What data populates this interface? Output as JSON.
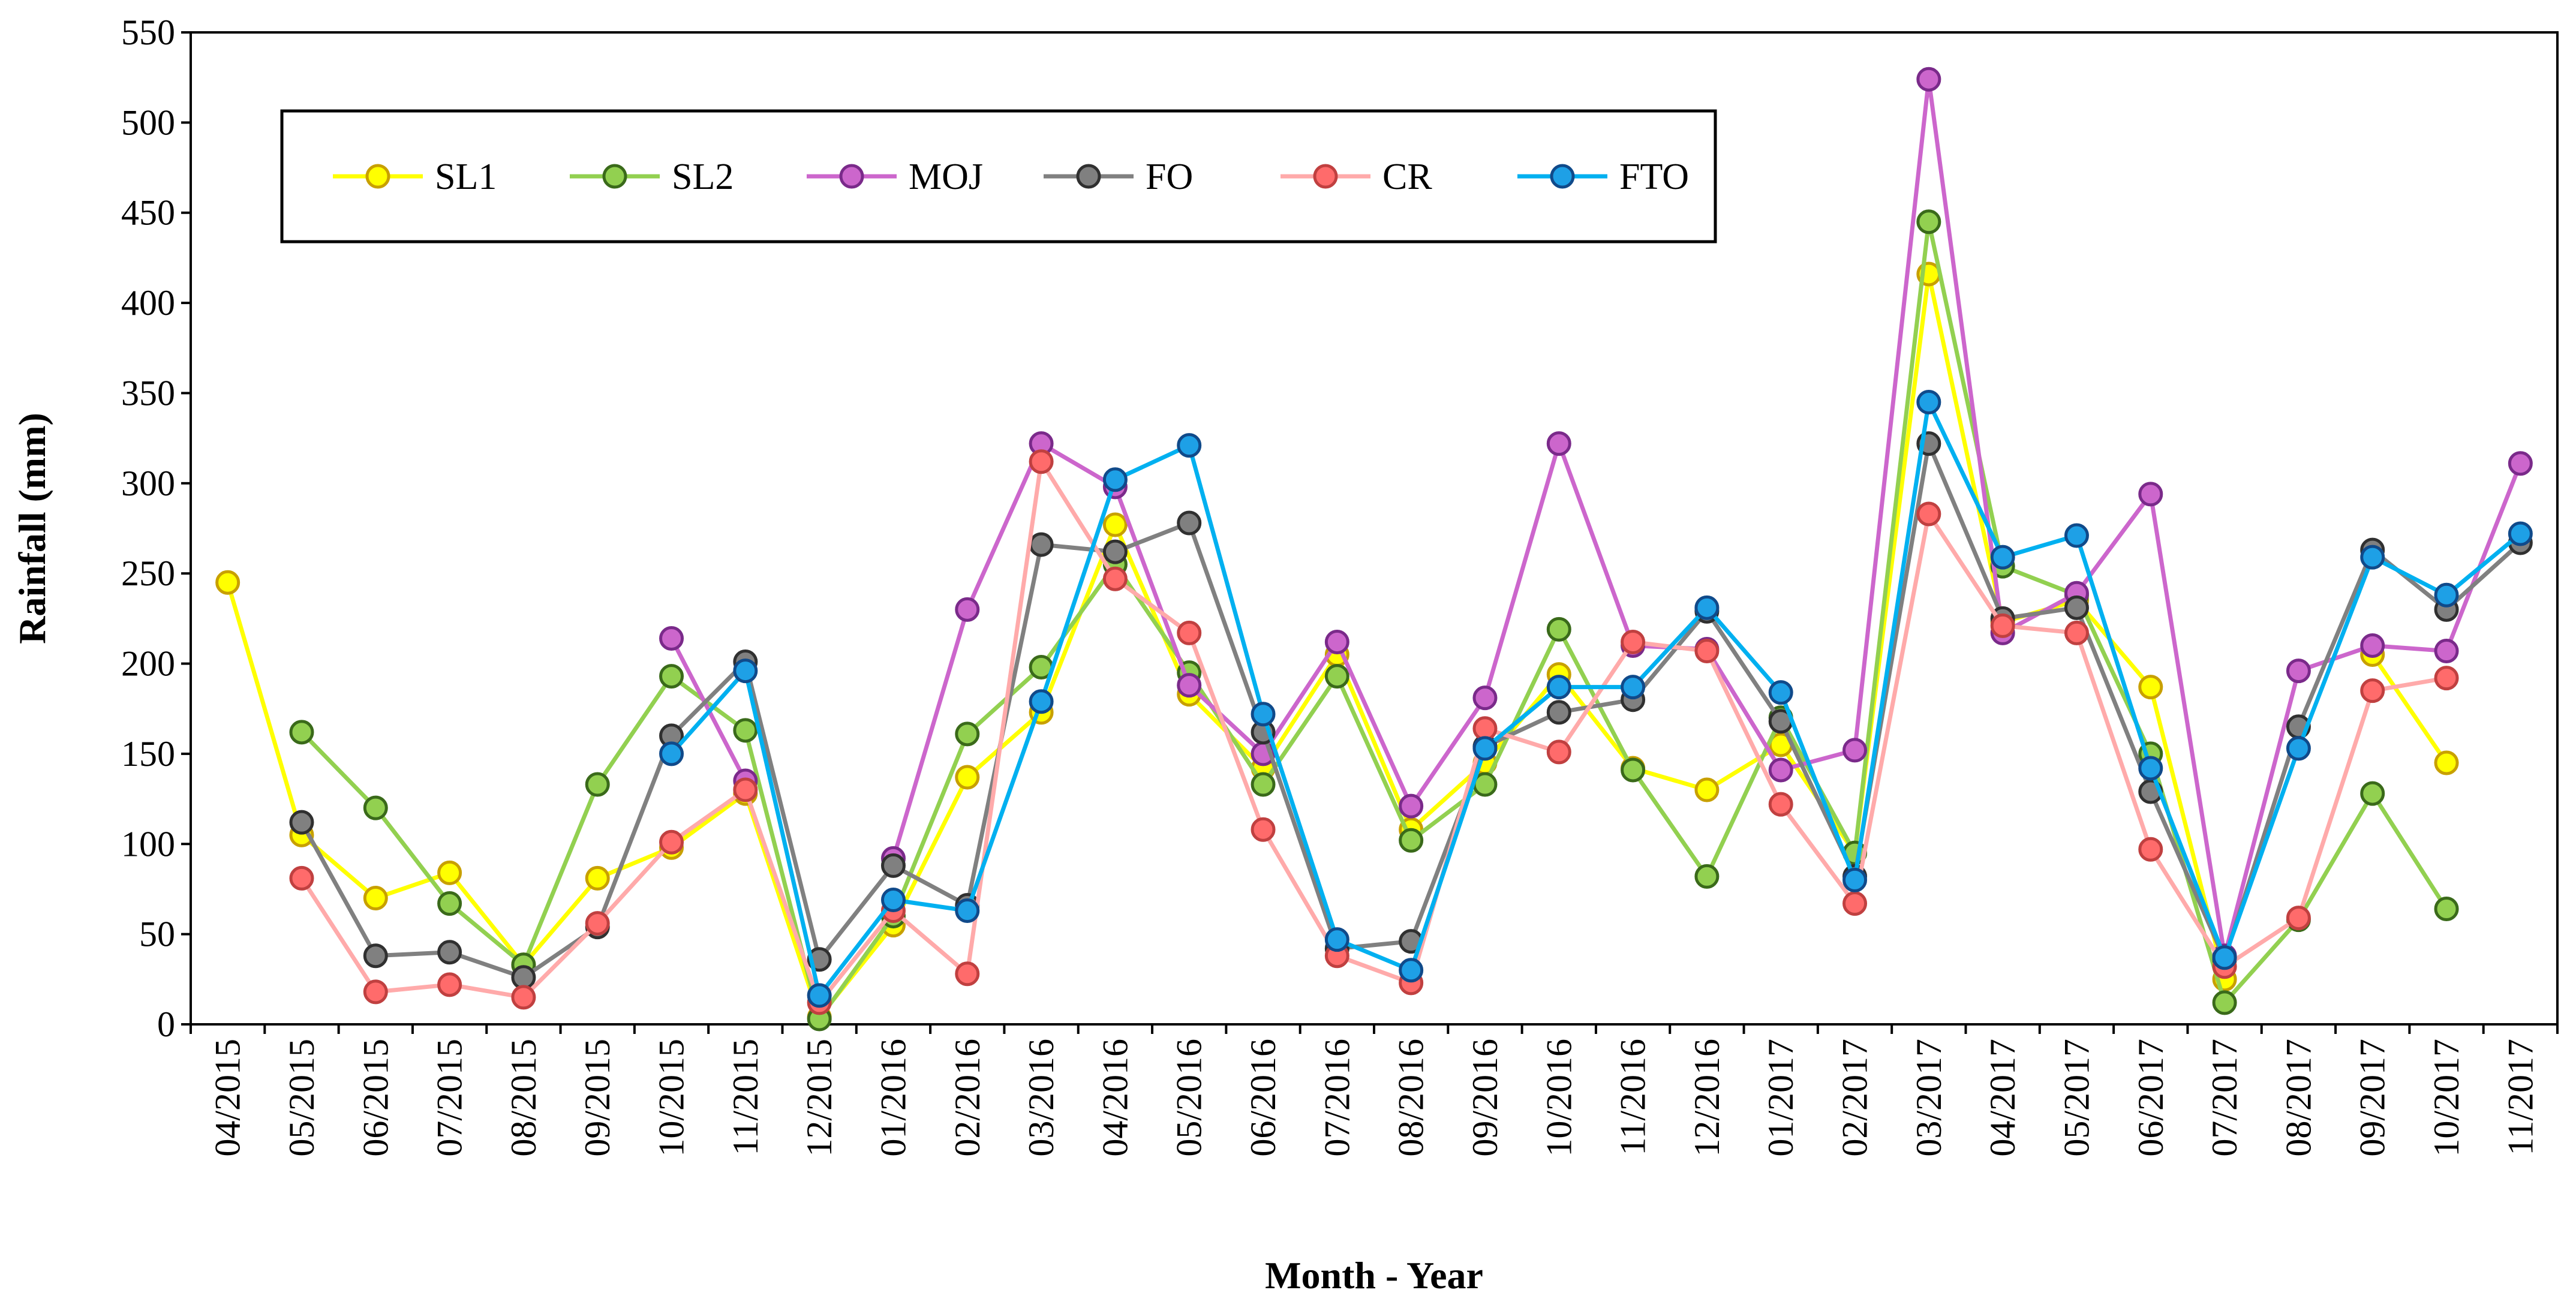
{
  "chart_data": {
    "type": "line",
    "title": "",
    "xlabel": "Month  - Year",
    "ylabel": "Rainfall (mm)",
    "ylim": [
      0,
      550
    ],
    "yticks": [
      0,
      50,
      100,
      150,
      200,
      250,
      300,
      350,
      400,
      450,
      500,
      550
    ],
    "grid": false,
    "legend_position": "top-left",
    "categories": [
      "04/2015",
      "05/2015",
      "06/2015",
      "07/2015",
      "08/2015",
      "09/2015",
      "10/2015",
      "11/2015",
      "12/2015",
      "01/2016",
      "02/2016",
      "03/2016",
      "04/2016",
      "05/2016",
      "06/2016",
      "07/2016",
      "08/2016",
      "09/2016",
      "10/2016",
      "11/2016",
      "12/2016",
      "01/2017",
      "02/2017",
      "03/2017",
      "04/2017",
      "05/2017",
      "06/2017",
      "07/2017",
      "08/2017",
      "09/2017",
      "10/2017",
      "11/2017"
    ],
    "series": [
      {
        "name": "SL1",
        "line_color": "#ffff00",
        "fill_color": "#ffff00",
        "edge_color": "#c8a000",
        "values": [
          245,
          105,
          70,
          84,
          33,
          81,
          98,
          128,
          4,
          55,
          137,
          173,
          277,
          183,
          142,
          205,
          108,
          145,
          194,
          142,
          130,
          155,
          95,
          416,
          223,
          235,
          187,
          25,
          null,
          205,
          145,
          null
        ]
      },
      {
        "name": "SL2",
        "line_color": "#92d050",
        "fill_color": "#92d050",
        "edge_color": "#3a6a1a",
        "values": [
          null,
          162,
          120,
          67,
          33,
          133,
          193,
          163,
          3,
          60,
          161,
          198,
          255,
          195,
          133,
          193,
          102,
          133,
          219,
          141,
          82,
          170,
          95,
          445,
          254,
          238,
          150,
          12,
          58,
          128,
          64,
          null
        ]
      },
      {
        "name": "MOJ",
        "line_color": "#cc66cc",
        "fill_color": "#cc66cc",
        "edge_color": "#7a2a8a",
        "values": [
          null,
          null,
          null,
          null,
          null,
          null,
          214,
          135,
          null,
          92,
          230,
          322,
          298,
          188,
          150,
          212,
          121,
          181,
          322,
          210,
          208,
          141,
          152,
          524,
          217,
          239,
          294,
          38,
          196,
          210,
          207,
          311
        ]
      },
      {
        "name": "FO",
        "line_color": "#808080",
        "fill_color": "#808080",
        "edge_color": "#303030",
        "values": [
          null,
          112,
          38,
          40,
          26,
          54,
          160,
          201,
          36,
          88,
          66,
          266,
          262,
          278,
          162,
          42,
          46,
          154,
          173,
          180,
          229,
          168,
          82,
          322,
          225,
          231,
          129,
          36,
          165,
          263,
          230,
          267
        ]
      },
      {
        "name": "CR",
        "line_color": "#ffaaaa",
        "fill_color": "#ff6b6b",
        "edge_color": "#c04040",
        "values": [
          null,
          81,
          18,
          22,
          15,
          56,
          101,
          130,
          12,
          63,
          28,
          312,
          247,
          217,
          108,
          38,
          23,
          164,
          151,
          212,
          207,
          122,
          67,
          283,
          221,
          217,
          97,
          32,
          59,
          185,
          192,
          null
        ]
      },
      {
        "name": "FTO",
        "line_color": "#00b0f0",
        "fill_color": "#1ea0e6",
        "edge_color": "#104a8a",
        "values": [
          null,
          null,
          null,
          null,
          null,
          null,
          150,
          196,
          16,
          69,
          63,
          179,
          302,
          321,
          172,
          47,
          30,
          153,
          187,
          187,
          231,
          184,
          80,
          345,
          259,
          271,
          142,
          37,
          153,
          259,
          238,
          272
        ]
      }
    ]
  }
}
